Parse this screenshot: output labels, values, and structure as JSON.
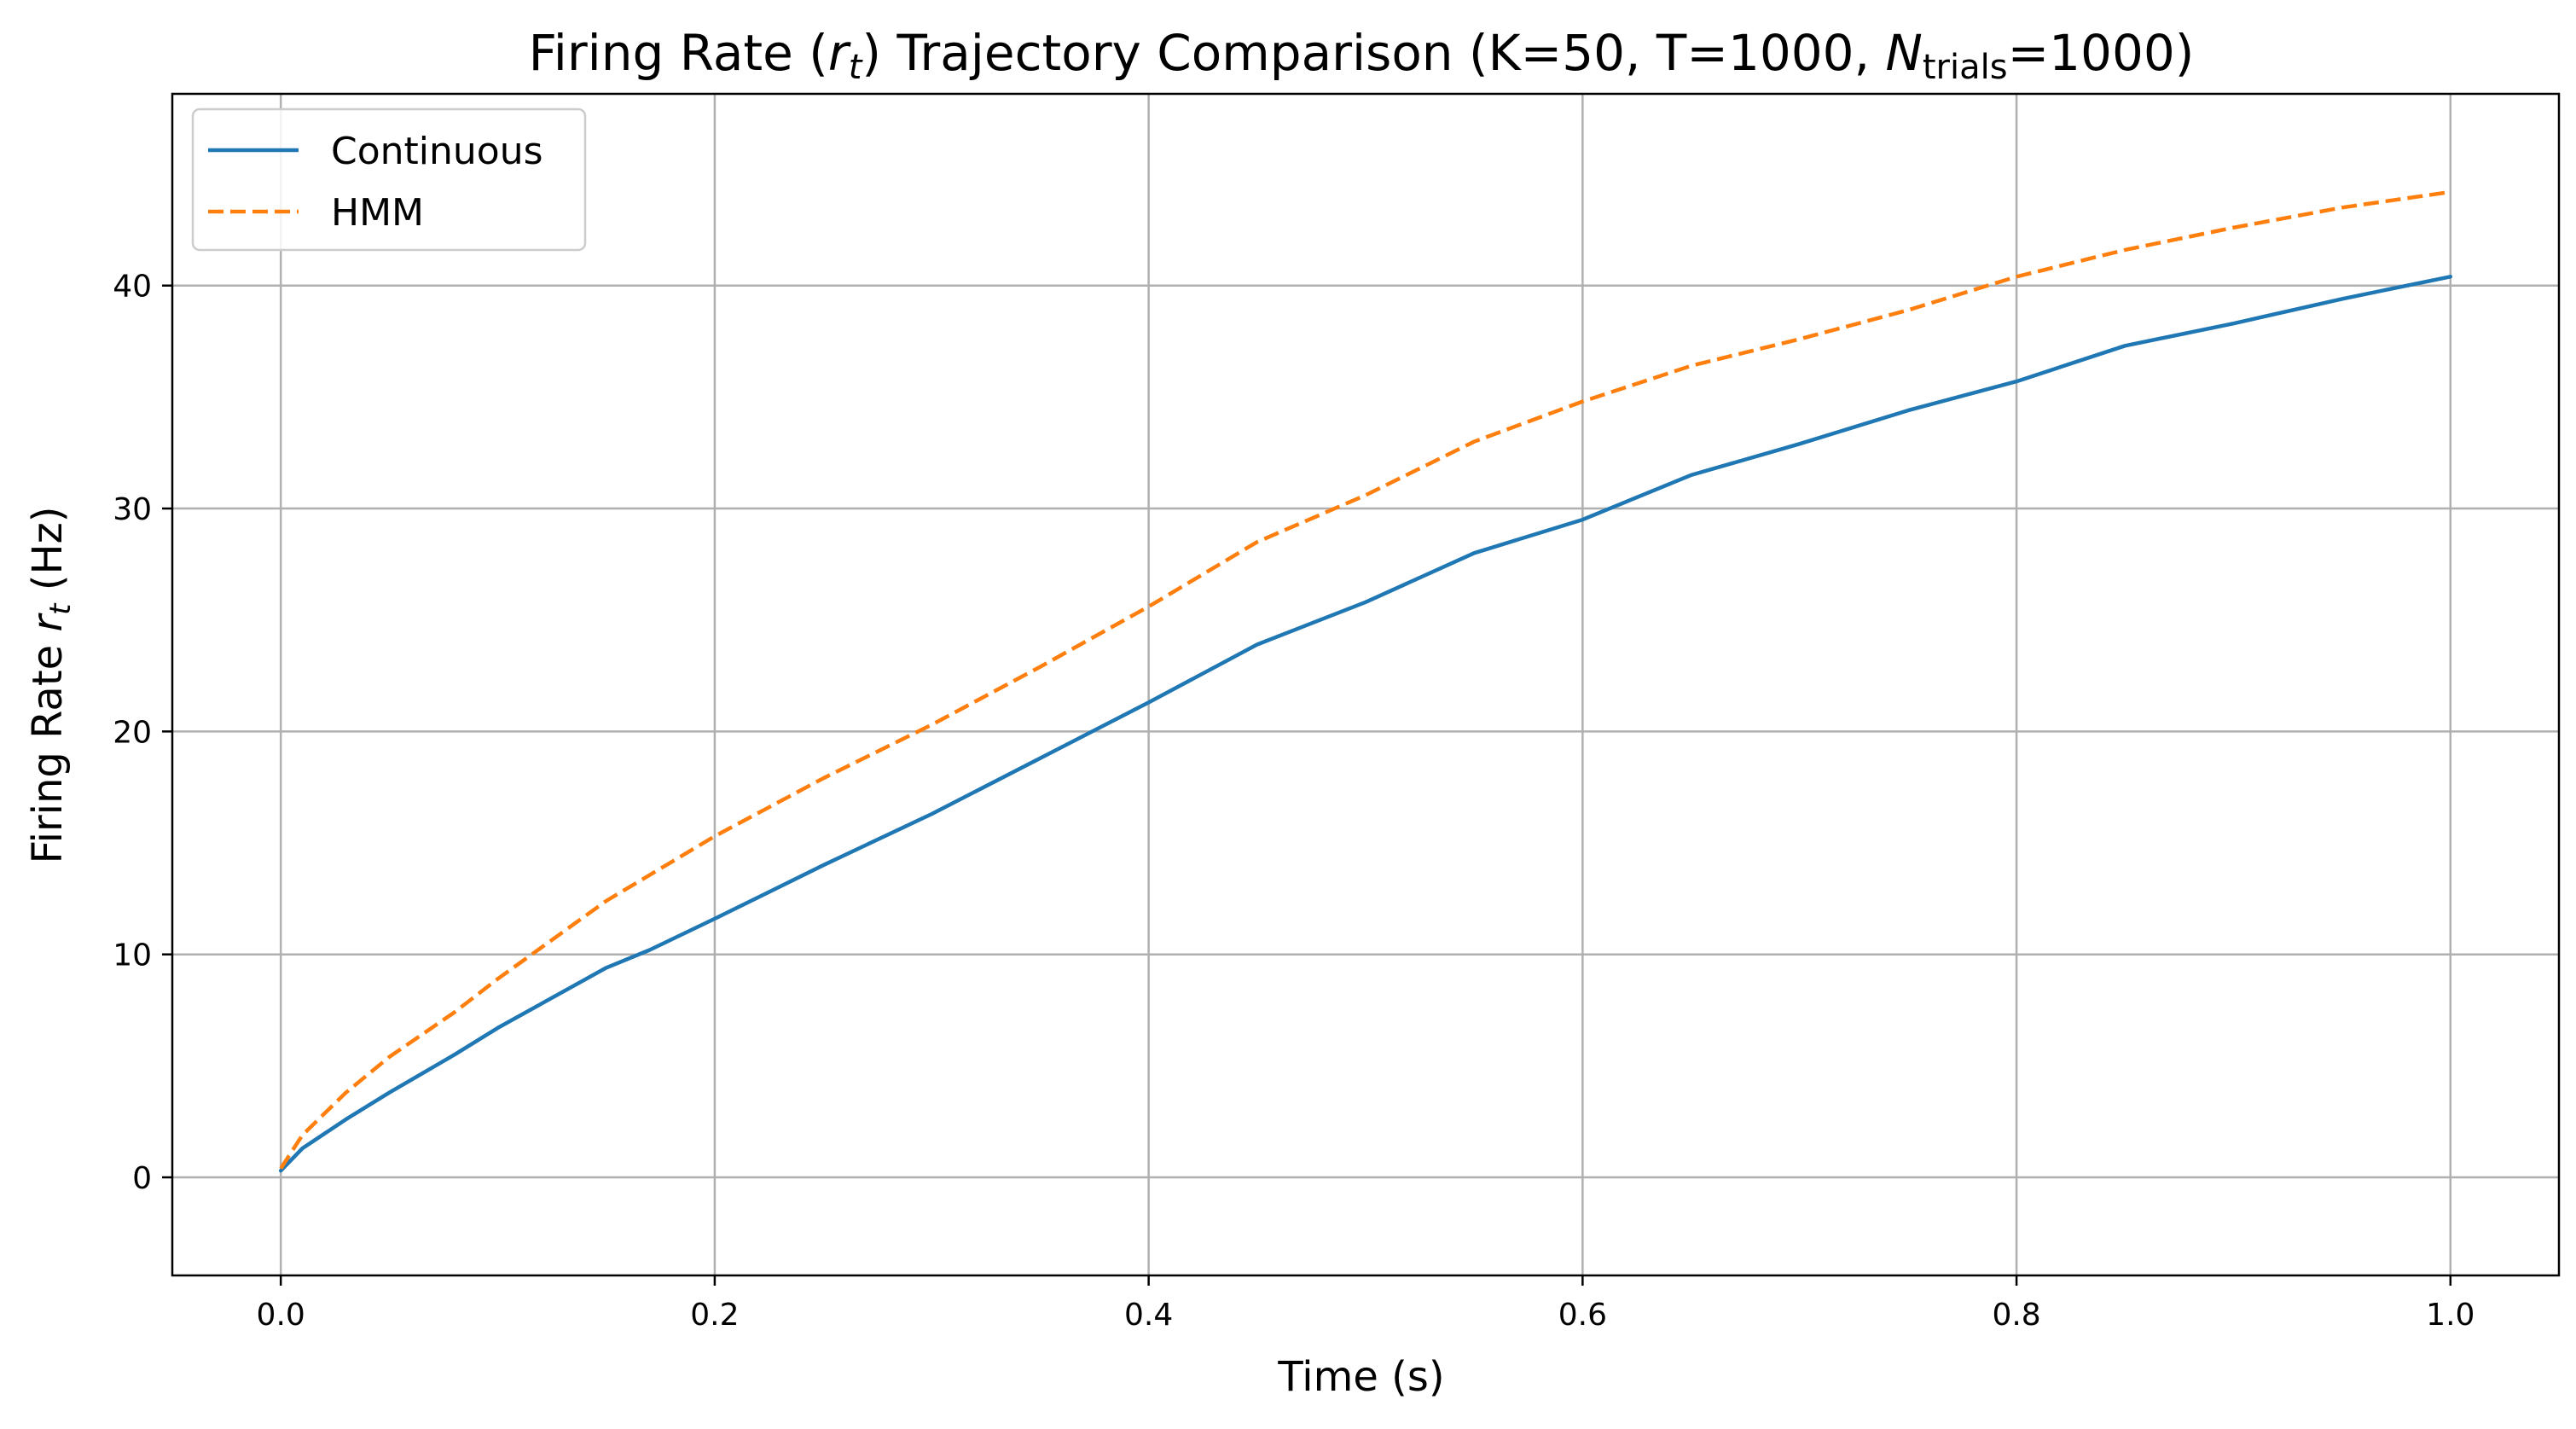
{
  "chart_data": {
    "type": "line",
    "title": {
      "prefix": "Firing Rate (",
      "math_var": "r",
      "math_sub": "t",
      "mid": ") Trajectory Comparison (K=50, T=1000, ",
      "n_var": "N",
      "n_sub": "trials",
      "suffix": "=1000)"
    },
    "xlabel": "Time (s)",
    "ylabel": {
      "prefix": "Firing Rate ",
      "math_var": "r",
      "math_sub": "t",
      "suffix": " (Hz)"
    },
    "xlim": [
      -0.05,
      1.05
    ],
    "ylim": [
      -4.4,
      48.6
    ],
    "xticks": [
      0.0,
      0.2,
      0.4,
      0.6,
      0.8,
      1.0
    ],
    "xtick_labels": [
      "0.0",
      "0.2",
      "0.4",
      "0.6",
      "0.8",
      "1.0"
    ],
    "yticks": [
      0,
      10,
      20,
      30,
      40
    ],
    "ytick_labels": [
      "0",
      "10",
      "20",
      "30",
      "40"
    ],
    "grid": true,
    "legend_position": "top-left",
    "series": [
      {
        "name": "Continuous",
        "color": "#1f77b4",
        "dash": "solid",
        "x": [
          0.0,
          0.01,
          0.03,
          0.05,
          0.08,
          0.1,
          0.15,
          0.17,
          0.2,
          0.25,
          0.3,
          0.35,
          0.4,
          0.45,
          0.5,
          0.55,
          0.6,
          0.65,
          0.7,
          0.75,
          0.8,
          0.85,
          0.9,
          0.95,
          1.0
        ],
        "y": [
          0.3,
          1.3,
          2.6,
          3.8,
          5.5,
          6.7,
          9.4,
          10.2,
          11.6,
          14.0,
          16.3,
          18.8,
          21.3,
          23.9,
          25.8,
          28.0,
          29.5,
          31.5,
          32.9,
          34.4,
          35.7,
          37.3,
          38.3,
          39.4,
          40.4
        ]
      },
      {
        "name": "HMM",
        "color": "#ff7f0e",
        "dash": "dashed",
        "x": [
          0.0,
          0.01,
          0.03,
          0.05,
          0.08,
          0.1,
          0.15,
          0.2,
          0.25,
          0.3,
          0.35,
          0.4,
          0.45,
          0.5,
          0.55,
          0.6,
          0.65,
          0.7,
          0.75,
          0.8,
          0.85,
          0.9,
          0.95,
          1.0
        ],
        "y": [
          0.4,
          1.9,
          3.8,
          5.4,
          7.4,
          8.9,
          12.4,
          15.3,
          17.9,
          20.3,
          22.9,
          25.6,
          28.5,
          30.6,
          33.0,
          34.8,
          36.4,
          37.6,
          38.9,
          40.4,
          41.6,
          42.6,
          43.5,
          44.2
        ]
      }
    ]
  }
}
